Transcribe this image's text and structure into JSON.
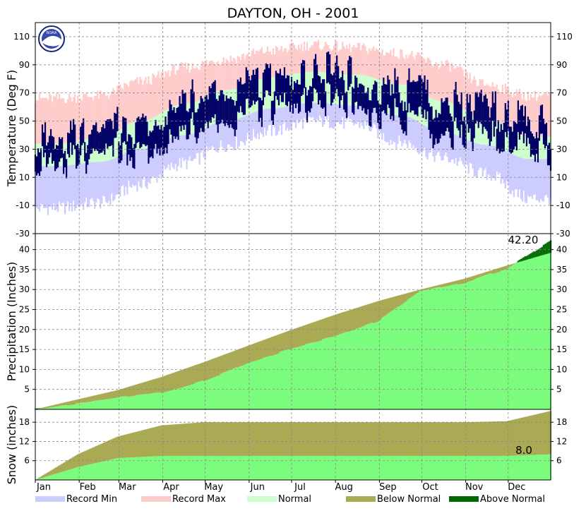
{
  "chart_data": {
    "type": "area",
    "title": "DAYTON, OH - 2001",
    "months": [
      "Jan",
      "Feb",
      "Mar",
      "Apr",
      "May",
      "Jun",
      "Jul",
      "Aug",
      "Sep",
      "Oct",
      "Nov",
      "Dec"
    ],
    "month_starts": [
      1,
      32,
      60,
      91,
      121,
      152,
      182,
      213,
      244,
      274,
      305,
      335
    ],
    "x_range": [
      1,
      365
    ],
    "legend_placement": "bottom",
    "grid": true,
    "logo": "noaa-logo",
    "logo_text": "NOAA",
    "colors": {
      "record_min": "#ccccff",
      "record_max": "#ffcccc",
      "normal": "#ccffcc",
      "observed": "#000066",
      "below_normal": "#aaaa55",
      "above_normal": "#006600",
      "precip_fill": "#7cfc7c"
    },
    "legend": [
      {
        "label": "Record Min",
        "color": "#ccccff"
      },
      {
        "label": "Record Max",
        "color": "#ffcccc"
      },
      {
        "label": "Normal",
        "color": "#ccffcc"
      },
      {
        "label": "Below Normal",
        "color": "#aaaa55"
      },
      {
        "label": "Above Normal",
        "color": "#006600"
      }
    ],
    "temperature": {
      "ylabel": "Temperature (Deg F)",
      "ylim": [
        -30,
        120
      ],
      "ticks": [
        -30,
        -10,
        10,
        30,
        50,
        70,
        90,
        110
      ],
      "record_min_monthly": [
        -12,
        -8,
        5,
        20,
        33,
        43,
        50,
        48,
        35,
        24,
        12,
        -5
      ],
      "record_max_monthly": [
        66,
        68,
        78,
        88,
        94,
        100,
        104,
        102,
        98,
        90,
        76,
        68
      ],
      "normal_high_monthly": [
        34,
        38,
        50,
        62,
        72,
        81,
        85,
        83,
        76,
        64,
        51,
        39
      ],
      "normal_low_monthly": [
        18,
        21,
        30,
        40,
        50,
        59,
        63,
        61,
        54,
        42,
        33,
        23
      ],
      "observed_high_monthly": [
        36,
        42,
        46,
        64,
        74,
        79,
        84,
        83,
        72,
        64,
        62,
        46
      ],
      "observed_low_monthly": [
        20,
        26,
        28,
        42,
        52,
        60,
        64,
        64,
        52,
        42,
        40,
        30
      ]
    },
    "precipitation": {
      "ylabel": "Precipitation (Inches)",
      "ylim": [
        0,
        44
      ],
      "ticks": [
        5,
        10,
        15,
        20,
        25,
        30,
        35,
        40
      ],
      "annotation": "42.20",
      "observed_cumulative_month_end": [
        1.5,
        3.0,
        4.1,
        7.2,
        11.5,
        15.1,
        18.2,
        22.1,
        29.5,
        31.7,
        35.2,
        42.2
      ],
      "normal_cumulative_month_end": [
        2.5,
        4.8,
        8.1,
        11.8,
        15.9,
        19.8,
        23.6,
        27.1,
        30.0,
        32.7,
        36.0,
        39.2
      ]
    },
    "snow": {
      "ylabel": "Snow (inches)",
      "ylim": [
        0,
        22
      ],
      "ticks": [
        6,
        12,
        18
      ],
      "annotation": "8.0",
      "observed_cumulative_month_end": [
        4.0,
        6.8,
        7.5,
        7.5,
        7.5,
        7.5,
        7.5,
        7.5,
        7.5,
        7.5,
        7.5,
        8.0
      ],
      "normal_cumulative_month_end": [
        8.0,
        13.5,
        17.0,
        18.0,
        18.0,
        18.0,
        18.0,
        18.0,
        18.0,
        18.0,
        18.3,
        21.5
      ]
    }
  }
}
